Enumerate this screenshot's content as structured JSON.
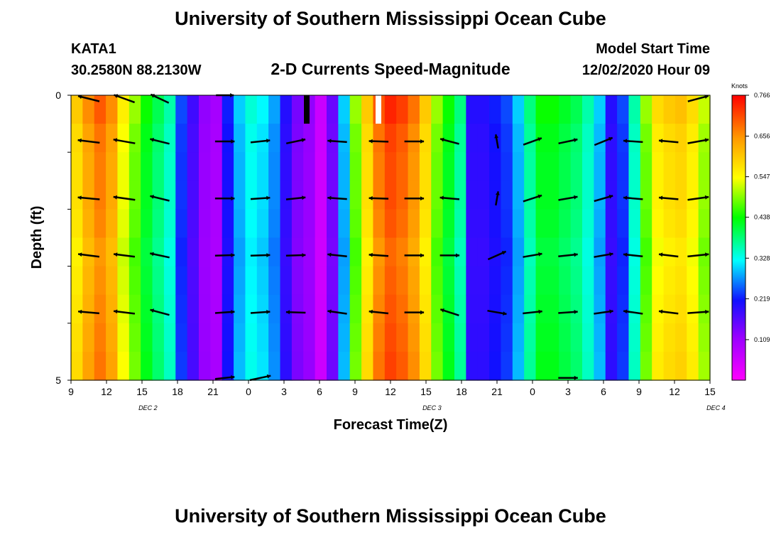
{
  "header": {
    "title_top": "University of Southern Mississippi Ocean Cube",
    "title_bottom": "University of Southern Mississippi Ocean Cube",
    "station": "KATA1",
    "coords": "30.2580N 88.2130W",
    "plot_title": "2-D Currents Speed-Magnitude",
    "model_start_label": "Model Start Time",
    "model_start_value": "12/02/2020 Hour 09"
  },
  "chart_data": {
    "type": "heatmap",
    "title": "2-D Currents Speed-Magnitude",
    "xlabel": "Forecast Time(Z)",
    "ylabel": "Depth (ft)",
    "colorbar_unit": "Knots",
    "x_tick_labels": [
      "9",
      "12",
      "15",
      "18",
      "21",
      "0",
      "3",
      "6",
      "9",
      "12",
      "15",
      "18",
      "21",
      "0",
      "3",
      "6",
      "9",
      "12",
      "15"
    ],
    "date_labels": [
      {
        "label": "DEC 2",
        "hour": 15.5
      },
      {
        "label": "DEC 3",
        "hour": 39.5
      },
      {
        "label": "DEC 4",
        "hour": 63.5
      }
    ],
    "y_tick_labels": [
      "0",
      "5"
    ],
    "ylim": [
      0,
      5
    ],
    "x_range_hours": [
      0,
      54
    ],
    "colorbar_ticks": [
      "0.109",
      "0.219",
      "0.328",
      "0.438",
      "0.547",
      "0.656",
      "0.766"
    ],
    "colorbar_range": [
      0,
      0.766
    ],
    "times_hours": [
      0,
      1,
      2,
      3,
      4,
      5,
      6,
      7,
      8,
      9,
      10,
      11,
      12,
      13,
      14,
      15,
      16,
      17,
      18,
      19,
      20,
      21,
      22,
      23,
      24,
      25,
      26,
      27,
      28,
      29,
      30,
      31,
      32,
      33,
      34,
      35,
      36,
      37,
      38,
      39,
      40,
      41,
      42,
      43,
      44,
      45,
      46,
      47,
      48,
      49,
      50,
      51,
      52,
      53,
      54
    ],
    "speed_knots_by_time": [
      0.6,
      0.66,
      0.7,
      0.66,
      0.56,
      0.5,
      0.44,
      0.4,
      0.36,
      0.24,
      0.18,
      0.12,
      0.1,
      0.22,
      0.3,
      0.34,
      0.32,
      0.28,
      0.2,
      0.14,
      0.12,
      0.06,
      0.15,
      0.3,
      0.5,
      0.6,
      0.7,
      0.74,
      0.72,
      0.68,
      0.6,
      0.5,
      0.44,
      0.38,
      0.2,
      0.2,
      0.22,
      0.24,
      0.3,
      0.38,
      0.44,
      0.44,
      0.42,
      0.4,
      0.36,
      0.3,
      0.2,
      0.24,
      0.36,
      0.5,
      0.58,
      0.6,
      0.61,
      0.58,
      0.52
    ],
    "depth_row_factors": [
      1.0,
      0.97,
      0.96,
      0.96,
      0.95,
      0.93,
      0.94,
      0.95,
      0.96,
      0.97
    ],
    "vectors": [
      {
        "hour": 1.5,
        "d": [
          [
            0.06,
            0.62,
            166
          ],
          [
            0.81,
            0.62,
            173
          ],
          [
            1.81,
            0.62,
            175
          ],
          [
            2.81,
            0.6,
            173
          ],
          [
            3.81,
            0.6,
            175
          ]
        ]
      },
      {
        "hour": 4.5,
        "d": [
          [
            0.06,
            0.62,
            160
          ],
          [
            0.81,
            0.62,
            170
          ],
          [
            1.81,
            0.62,
            172
          ],
          [
            2.81,
            0.6,
            173
          ],
          [
            3.81,
            0.6,
            173
          ]
        ]
      },
      {
        "hour": 7.5,
        "d": [
          [
            0.06,
            0.56,
            155
          ],
          [
            0.81,
            0.56,
            166
          ],
          [
            1.81,
            0.56,
            166
          ],
          [
            2.81,
            0.56,
            168
          ],
          [
            3.81,
            0.56,
            165
          ]
        ]
      },
      {
        "hour": 13.0,
        "d": [
          [
            0.0,
            0.5,
            0
          ],
          [
            0.81,
            0.55,
            0
          ],
          [
            1.81,
            0.55,
            0
          ],
          [
            2.81,
            0.55,
            2
          ],
          [
            3.81,
            0.55,
            4
          ],
          [
            4.96,
            0.55,
            6
          ]
        ]
      },
      {
        "hour": 16.0,
        "d": [
          [
            0.81,
            0.55,
            6
          ],
          [
            1.81,
            0.55,
            4
          ],
          [
            2.81,
            0.55,
            2
          ],
          [
            3.81,
            0.55,
            4
          ],
          [
            4.96,
            0.6,
            12
          ]
        ]
      },
      {
        "hour": 19.0,
        "d": [
          [
            0.81,
            0.55,
            12
          ],
          [
            1.81,
            0.55,
            6
          ],
          [
            2.81,
            0.55,
            2
          ],
          [
            3.81,
            0.55,
            178
          ]
        ]
      },
      {
        "hour": 22.5,
        "d": [
          [
            0.81,
            0.55,
            176
          ],
          [
            1.81,
            0.55,
            176
          ],
          [
            2.81,
            0.55,
            174
          ],
          [
            3.81,
            0.55,
            172
          ]
        ]
      },
      {
        "hour": 26.0,
        "d": [
          [
            0.81,
            0.55,
            178
          ],
          [
            1.81,
            0.55,
            178
          ],
          [
            2.81,
            0.55,
            176
          ],
          [
            3.81,
            0.55,
            174
          ]
        ]
      },
      {
        "hour": 29.0,
        "d": [
          [
            0.81,
            0.55,
            0
          ],
          [
            1.81,
            0.55,
            0
          ],
          [
            2.81,
            0.55,
            0
          ],
          [
            3.81,
            0.55,
            0
          ]
        ]
      },
      {
        "hour": 32.0,
        "d": [
          [
            0.81,
            0.55,
            165
          ],
          [
            1.81,
            0.55,
            175
          ],
          [
            2.81,
            0.55,
            0
          ],
          [
            3.81,
            0.55,
            162
          ]
        ]
      },
      {
        "hour": 36.0,
        "d": [
          [
            0.81,
            0.4,
            100
          ],
          [
            1.81,
            0.4,
            80
          ],
          [
            2.81,
            0.55,
            24
          ],
          [
            3.81,
            0.55,
            350
          ]
        ]
      },
      {
        "hour": 39.0,
        "d": [
          [
            0.81,
            0.55,
            20
          ],
          [
            1.81,
            0.55,
            18
          ],
          [
            2.81,
            0.55,
            10
          ],
          [
            3.81,
            0.55,
            6
          ]
        ]
      },
      {
        "hour": 42.0,
        "d": [
          [
            0.81,
            0.55,
            12
          ],
          [
            1.81,
            0.55,
            10
          ],
          [
            2.81,
            0.55,
            6
          ],
          [
            3.81,
            0.55,
            4
          ],
          [
            4.96,
            0.55,
            0
          ]
        ]
      },
      {
        "hour": 45.0,
        "d": [
          [
            0.81,
            0.55,
            22
          ],
          [
            1.81,
            0.55,
            16
          ],
          [
            2.81,
            0.55,
            10
          ],
          [
            3.81,
            0.55,
            8
          ]
        ]
      },
      {
        "hour": 47.5,
        "d": [
          [
            0.81,
            0.55,
            176
          ],
          [
            1.81,
            0.55,
            175
          ],
          [
            2.81,
            0.55,
            174
          ],
          [
            3.81,
            0.55,
            172
          ]
        ]
      },
      {
        "hour": 50.5,
        "d": [
          [
            0.81,
            0.55,
            175
          ],
          [
            1.81,
            0.55,
            175
          ],
          [
            2.81,
            0.55,
            173
          ],
          [
            3.81,
            0.55,
            173
          ]
        ]
      },
      {
        "hour": 53.0,
        "d": [
          [
            0.06,
            0.6,
            15
          ],
          [
            0.81,
            0.6,
            10
          ],
          [
            1.81,
            0.6,
            8
          ],
          [
            2.81,
            0.6,
            6
          ],
          [
            3.81,
            0.6,
            4
          ]
        ]
      }
    ]
  }
}
